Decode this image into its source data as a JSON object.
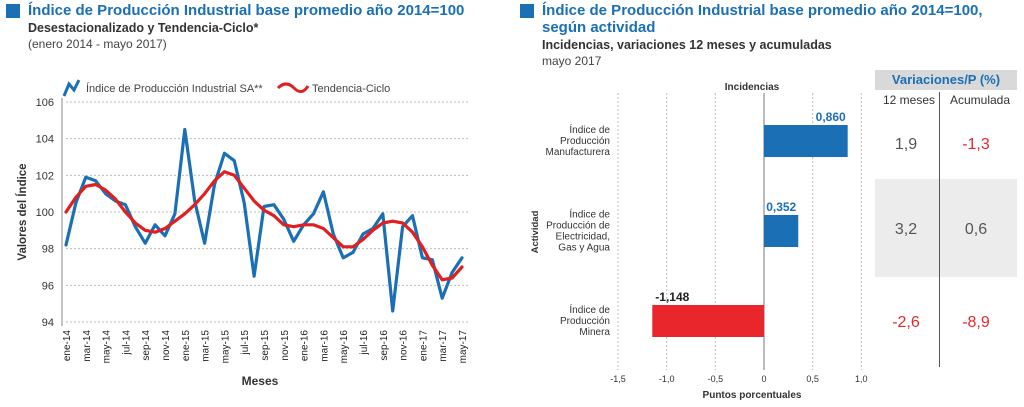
{
  "left": {
    "title": "Índice de Producción Industrial base promedio año 2014=100",
    "subtitle": "Desestacionalizado y Tendencia-Ciclo*",
    "period": "(enero 2014 - mayo 2017)",
    "accent": "#1a6fb5"
  },
  "right": {
    "title_line1": "Índice de Producción Industrial base promedio año 2014=100,",
    "title_line2": "según actividad",
    "subtitle": "Incidencias, variaciones 12 meses y acumuladas",
    "period": "mayo 2017",
    "table": {
      "header": "Variaciones/P (%)",
      "col1": "12 meses",
      "col2": "Acumulada",
      "rows": [
        {
          "m12": "1,9",
          "acc": "-1,3"
        },
        {
          "m12": "3,2",
          "acc": "0,6"
        },
        {
          "m12": "-2,6",
          "acc": "-8,9"
        }
      ]
    }
  },
  "chart_data": [
    {
      "type": "line",
      "xlabel": "Meses",
      "ylabel": "Valores del Índice",
      "ylim": [
        94,
        106
      ],
      "yticks": [
        94,
        96,
        98,
        100,
        102,
        104,
        106
      ],
      "grid": true,
      "legend_position": "top",
      "categories": [
        "ene-14",
        "feb-14",
        "mar-14",
        "abr-14",
        "may-14",
        "jun-14",
        "jul-14",
        "ago-14",
        "sep-14",
        "oct-14",
        "nov-14",
        "dic-14",
        "ene-15",
        "feb-15",
        "mar-15",
        "abr-15",
        "may-15",
        "jun-15",
        "jul-15",
        "ago-15",
        "sep-15",
        "oct-15",
        "nov-15",
        "dic-15",
        "ene-16",
        "feb-16",
        "mar-16",
        "abr-16",
        "may-16",
        "jun-16",
        "jul-16",
        "ago-16",
        "sep-16",
        "oct-16",
        "nov-16",
        "dic-16",
        "ene-17",
        "feb-17",
        "mar-17",
        "abr-17",
        "may-17"
      ],
      "tick_labels": [
        "ene-14",
        "mar-14",
        "may-14",
        "jul-14",
        "sep-14",
        "nov-14",
        "ene-15",
        "mar-15",
        "may-15",
        "jul-15",
        "sep-15",
        "nov-15",
        "ene-16",
        "mar-16",
        "may-16",
        "jul-16",
        "sep-16",
        "nov-16",
        "ene-17",
        "mar-17",
        "may-17"
      ],
      "series": [
        {
          "name": "Índice de Producción Industrial SA**",
          "color": "#1a6fb5",
          "values": [
            98.2,
            100.5,
            101.9,
            101.7,
            101.0,
            100.6,
            100.4,
            99.2,
            98.3,
            99.3,
            98.7,
            99.9,
            104.5,
            100.6,
            98.3,
            101.5,
            103.2,
            102.8,
            100.5,
            96.5,
            100.3,
            100.4,
            99.6,
            98.4,
            99.3,
            99.9,
            101.1,
            98.8,
            97.5,
            97.8,
            98.8,
            99.1,
            99.9,
            94.6,
            99.2,
            99.8,
            97.5,
            97.4,
            95.3,
            96.7,
            97.5
          ]
        },
        {
          "name": "Tendencia-Ciclo",
          "color": "#e02020",
          "values": [
            100.0,
            100.8,
            101.4,
            101.5,
            101.2,
            100.7,
            100.0,
            99.4,
            99.0,
            98.9,
            99.1,
            99.5,
            99.9,
            100.4,
            101.0,
            101.7,
            102.2,
            102.0,
            101.3,
            100.6,
            100.1,
            99.8,
            99.3,
            99.2,
            99.3,
            99.3,
            99.1,
            98.6,
            98.1,
            98.1,
            98.5,
            99.0,
            99.4,
            99.5,
            99.4,
            98.9,
            98.1,
            97.1,
            96.3,
            96.4,
            97.0
          ]
        }
      ]
    },
    {
      "type": "bar",
      "orientation": "horizontal",
      "title": "Incidencias",
      "xlabel": "Puntos porcentuales",
      "ylabel": "Actividad",
      "xlim": [
        -1.5,
        1.0
      ],
      "xticks": [
        -1.5,
        -1.0,
        -0.5,
        0,
        0.5,
        1.0
      ],
      "xtick_labels": [
        "-1,5",
        "-1,0",
        "-0,5",
        "0",
        "0,5",
        "1,0"
      ],
      "categories": [
        [
          "Índice de",
          "Producción",
          "Manufacturera"
        ],
        [
          "Índice de",
          "Producción de",
          "Electricidad,",
          "Gas y Agua"
        ],
        [
          "Índice de",
          "Producción",
          "Minera"
        ]
      ],
      "values": [
        0.86,
        0.352,
        -1.148
      ],
      "value_labels": [
        "0,860",
        "0,352",
        "-1,148"
      ],
      "colors": [
        "#1a6fb5",
        "#1a6fb5",
        "#e8262b"
      ]
    }
  ]
}
